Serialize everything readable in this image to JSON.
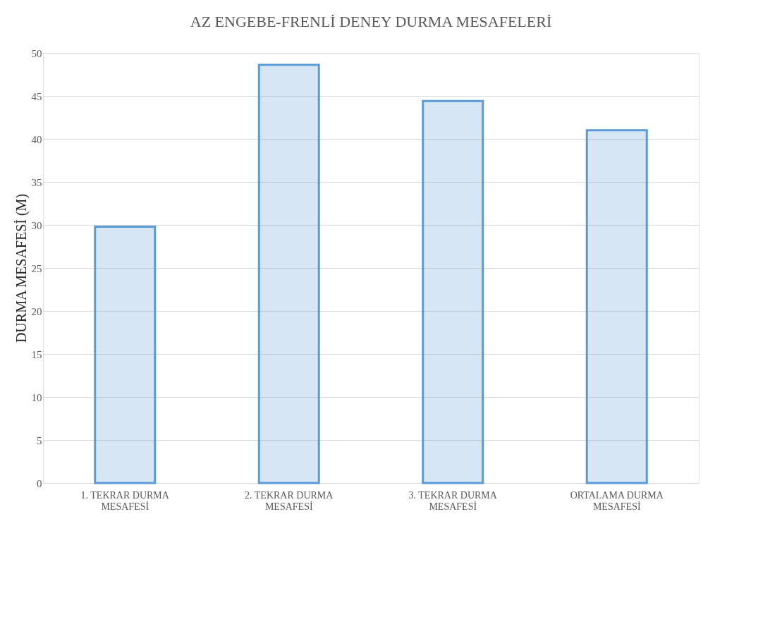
{
  "chart_data": {
    "type": "bar",
    "title": "AZ ENGEBE-FRENLİ DENEY DURMA MESAFELERİ",
    "ylabel": "DURMA MESAFESİ (M)",
    "categories": [
      "1. TEKRAR DURMA MESAFESİ",
      "2. TEKRAR DURMA MESAFESİ",
      "3. TEKRAR DURMA MESAFESİ",
      "ORTALAMA DURMA MESAFESİ"
    ],
    "values": [
      29.8,
      48.6,
      44.4,
      41.0
    ],
    "colors": [
      "#5b9bd5",
      "#5b9bd5",
      "#5b9bd5",
      "#5b9bd5"
    ],
    "ylim": [
      0,
      50
    ],
    "yticks": [
      0,
      5,
      10,
      15,
      20,
      25,
      30,
      35,
      40,
      45,
      50
    ],
    "grid": "y"
  }
}
